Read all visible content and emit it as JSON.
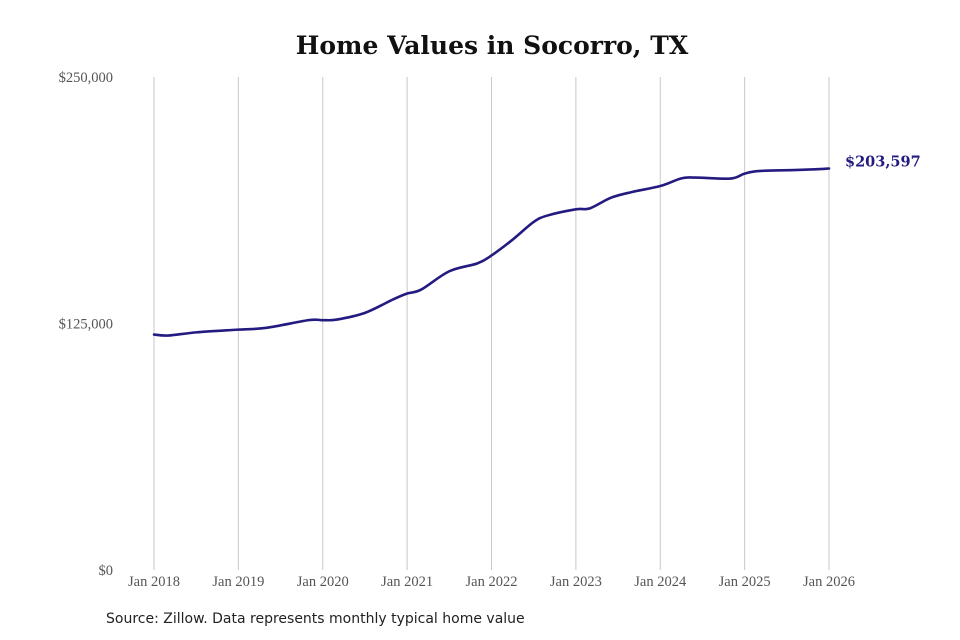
{
  "chart_data": {
    "type": "line",
    "title": "Home Values in Socorro, TX",
    "xlabel": "",
    "ylabel": "",
    "ylim": [
      0,
      250000
    ],
    "xlim": [
      "2018-01",
      "2026-01"
    ],
    "y_ticks": [
      {
        "value": 0,
        "label": "$0"
      },
      {
        "value": 125000,
        "label": "$125,000"
      },
      {
        "value": 250000,
        "label": "$250,000"
      }
    ],
    "x_ticks": [
      {
        "value": "2018-01",
        "label": "Jan 2018"
      },
      {
        "value": "2019-01",
        "label": "Jan 2019"
      },
      {
        "value": "2020-01",
        "label": "Jan 2020"
      },
      {
        "value": "2021-01",
        "label": "Jan 2021"
      },
      {
        "value": "2022-01",
        "label": "Jan 2022"
      },
      {
        "value": "2023-01",
        "label": "Jan 2023"
      },
      {
        "value": "2024-01",
        "label": "Jan 2024"
      },
      {
        "value": "2025-01",
        "label": "Jan 2025"
      },
      {
        "value": "2026-01",
        "label": "Jan 2026"
      }
    ],
    "grid": "vertical lines at x ticks",
    "line_color": "#231b80",
    "end_label": "$203,597",
    "series": [
      {
        "points": [
          [
            "2018-01",
            119400
          ],
          [
            "2018-03",
            118900
          ],
          [
            "2018-07",
            120500
          ],
          [
            "2019-01",
            121900
          ],
          [
            "2019-05",
            122800
          ],
          [
            "2019-11",
            126700
          ],
          [
            "2020-01",
            126700
          ],
          [
            "2020-03",
            127000
          ],
          [
            "2020-07",
            130400
          ],
          [
            "2020-11",
            137200
          ],
          [
            "2021-01",
            140200
          ],
          [
            "2021-03",
            142200
          ],
          [
            "2021-07",
            151500
          ],
          [
            "2021-11",
            155500
          ],
          [
            "2022-01",
            159500
          ],
          [
            "2022-04",
            167500
          ],
          [
            "2022-07",
            176500
          ],
          [
            "2022-09",
            179800
          ],
          [
            "2023-01",
            182900
          ],
          [
            "2023-03",
            183400
          ],
          [
            "2023-06",
            188800
          ],
          [
            "2023-09",
            191700
          ],
          [
            "2024-01",
            194700
          ],
          [
            "2024-04",
            198600
          ],
          [
            "2024-06",
            199000
          ],
          [
            "2024-11",
            198500
          ],
          [
            "2025-01",
            201000
          ],
          [
            "2025-03",
            202300
          ],
          [
            "2025-08",
            202800
          ],
          [
            "2025-11",
            203200
          ],
          [
            "2026-01",
            203597
          ]
        ]
      }
    ]
  },
  "source": "Source: Zillow. Data represents monthly typical home value"
}
